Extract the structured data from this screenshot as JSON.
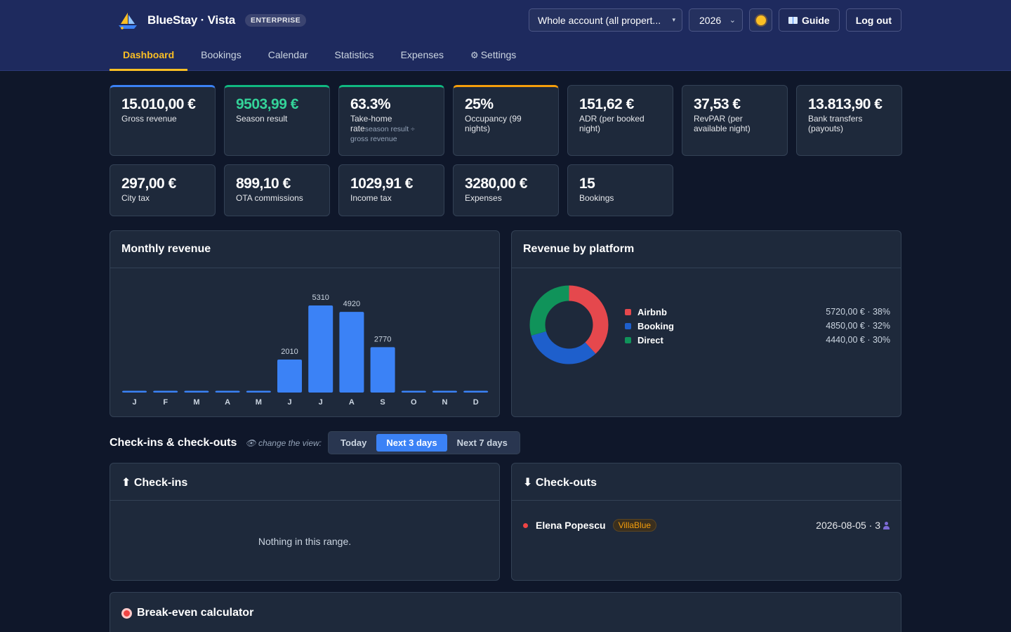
{
  "brand": {
    "name": "BlueStay · Vista",
    "plan": "ENTERPRISE",
    "logo_icon": "sailboat-icon"
  },
  "header": {
    "account_select": "Whole account (all propert...",
    "year_select": "2026",
    "theme_icon": "sun-icon",
    "guide_label": "Guide",
    "guide_icon": "book-icon",
    "logout_label": "Log out"
  },
  "nav": {
    "tabs": [
      {
        "label": "Dashboard",
        "active": true
      },
      {
        "label": "Bookings"
      },
      {
        "label": "Calendar"
      },
      {
        "label": "Statistics"
      },
      {
        "label": "Expenses"
      },
      {
        "label": "Settings",
        "icon": "gear-icon"
      }
    ],
    "gear_glyph": "⚙"
  },
  "kpis": {
    "row1": [
      {
        "value": "15.010,00 €",
        "label": "Gross revenue",
        "accent": "#3b82f6"
      },
      {
        "value": "9503,99 €",
        "label": "Season result",
        "accent": "#10b981",
        "value_color": "#34d399"
      },
      {
        "value": "63.3%",
        "label": "Take-home rate",
        "sub": "season result ÷ gross revenue",
        "accent": "#10b981"
      },
      {
        "value": "25%",
        "label": "Occupancy (99 nights)",
        "accent": "#f59e0b"
      },
      {
        "value": "151,62 €",
        "label": "ADR (per booked night)"
      },
      {
        "value": "37,53 €",
        "label": "RevPAR (per available night)"
      },
      {
        "value": "13.813,90 €",
        "label": "Bank transfers (payouts)"
      }
    ],
    "row2": [
      {
        "value": "297,00 €",
        "label": "City tax"
      },
      {
        "value": "899,10 €",
        "label": "OTA commissions"
      },
      {
        "value": "1029,91 €",
        "label": "Income tax"
      },
      {
        "value": "3280,00 €",
        "label": "Expenses"
      },
      {
        "value": "15",
        "label": "Bookings"
      }
    ]
  },
  "monthly_revenue": {
    "title": "Monthly revenue"
  },
  "platform_revenue": {
    "title": "Revenue by platform",
    "items": [
      {
        "name": "Airbnb",
        "value": "5720,00 € · 38%",
        "color": "#e5484d"
      },
      {
        "name": "Booking",
        "value": "4850,00 € · 32%",
        "color": "#1e5fcc"
      },
      {
        "name": "Direct",
        "value": "4440,00 € · 30%",
        "color": "#10935a"
      }
    ]
  },
  "chart_data": [
    {
      "type": "bar",
      "title": "Monthly revenue",
      "categories": [
        "J",
        "F",
        "M",
        "A",
        "M",
        "J",
        "J",
        "A",
        "S",
        "O",
        "N",
        "D"
      ],
      "values": [
        0,
        0,
        0,
        0,
        0,
        2010,
        5310,
        4920,
        2770,
        0,
        0,
        0
      ],
      "data_labels": [
        "",
        "",
        "",
        "",
        "",
        "2010",
        "5310",
        "4920",
        "2770",
        "",
        "",
        ""
      ],
      "color": "#3b82f6",
      "ylim": [
        0,
        5310
      ],
      "grid": false
    },
    {
      "type": "pie",
      "title": "Revenue by platform",
      "categories": [
        "Airbnb",
        "Booking",
        "Direct"
      ],
      "values": [
        5720,
        4850,
        4440
      ],
      "colors": [
        "#e5484d",
        "#1e5fcc",
        "#10935a"
      ],
      "donut": true,
      "legend": "right"
    }
  ],
  "checks": {
    "title": "Check-ins & check-outs",
    "hint": "👁 change the view:",
    "views": [
      {
        "label": "Today"
      },
      {
        "label": "Next 3 days",
        "active": true
      },
      {
        "label": "Next 7 days"
      }
    ],
    "checkins": {
      "title": "⬆ Check-ins",
      "empty": "Nothing in this range."
    },
    "checkouts": {
      "title": "⬇ Check-outs",
      "rows": [
        {
          "guest": "Elena Popescu",
          "property": "VillaBlue",
          "date": "2026-08-05 · 3",
          "status_color": "#ef4444"
        }
      ]
    }
  },
  "break_even": {
    "title": "Break-even calculator",
    "icon": "target-icon"
  }
}
